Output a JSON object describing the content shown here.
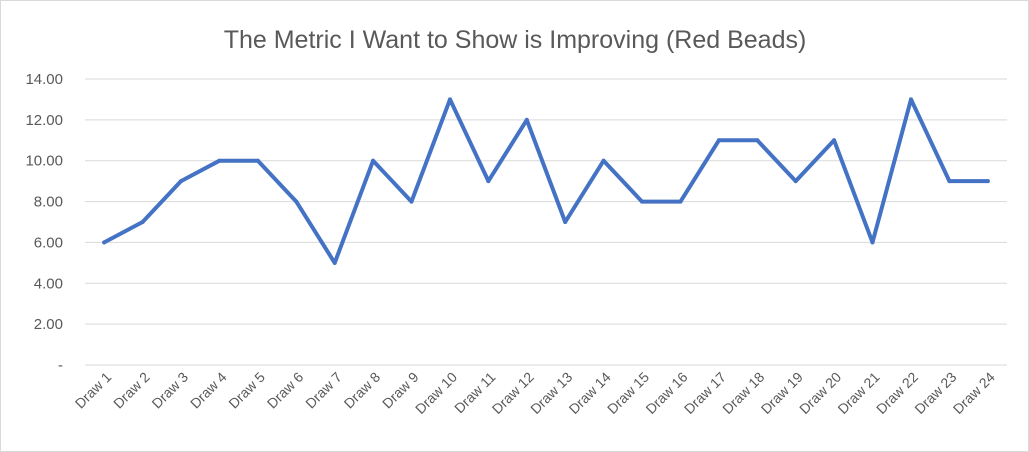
{
  "chart_data": {
    "type": "line",
    "title": "The Metric I Want to Show is Improving (Red Beads)",
    "xlabel": "",
    "ylabel": "",
    "categories": [
      "Draw 1",
      "Draw 2",
      "Draw 3",
      "Draw 4",
      "Draw 5",
      "Draw 6",
      "Draw 7",
      "Draw 8",
      "Draw 9",
      "Draw 10",
      "Draw 11",
      "Draw 12",
      "Draw 13",
      "Draw 14",
      "Draw 15",
      "Draw 16",
      "Draw 17",
      "Draw 18",
      "Draw 19",
      "Draw 20",
      "Draw 21",
      "Draw 22",
      "Draw 23",
      "Draw 24"
    ],
    "series": [
      {
        "values": [
          6,
          7,
          9,
          10,
          10,
          8,
          5,
          10,
          8,
          13,
          9,
          12,
          7,
          10,
          8,
          8,
          11,
          11,
          9,
          11,
          6,
          13,
          9,
          9
        ]
      }
    ],
    "ylim": [
      0,
      14
    ],
    "yticks": [
      {
        "value": 0,
        "label": "-"
      },
      {
        "value": 2,
        "label": "2.00"
      },
      {
        "value": 4,
        "label": "4.00"
      },
      {
        "value": 6,
        "label": "6.00"
      },
      {
        "value": 8,
        "label": "8.00"
      },
      {
        "value": 10,
        "label": "10.00"
      },
      {
        "value": 12,
        "label": "12.00"
      },
      {
        "value": 14,
        "label": "14.00"
      }
    ],
    "grid": true,
    "legend": "none",
    "line_color": "#4472c4"
  }
}
